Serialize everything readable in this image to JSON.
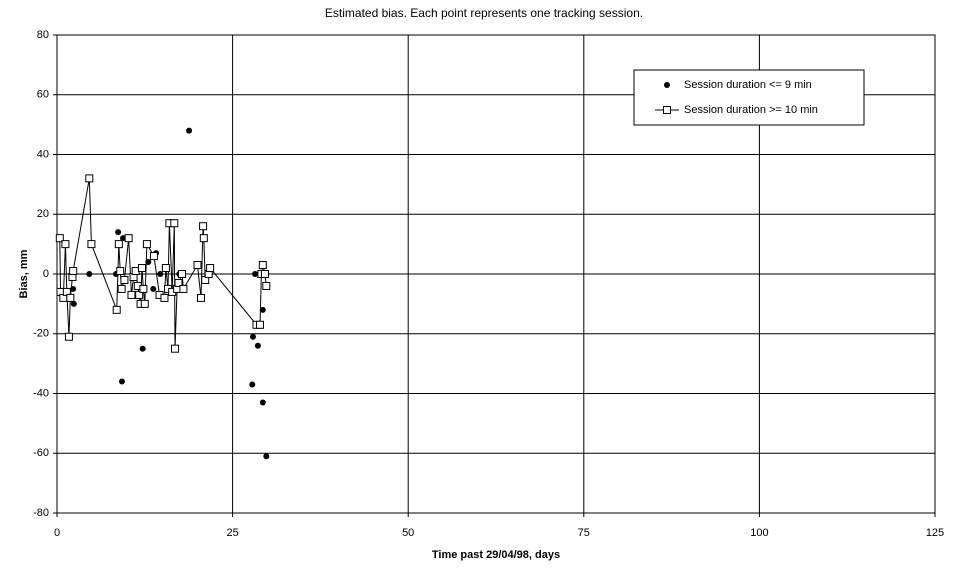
{
  "chart_data": {
    "type": "scatter",
    "title": "Estimated bias. Each point represents one tracking session.",
    "x_label": "Time past 29/04/98, days",
    "y_label": "Bias, mm",
    "xlim": [
      0,
      125
    ],
    "xticks": [
      0,
      25,
      50,
      75,
      100,
      125
    ],
    "ylim": [
      -80,
      80
    ],
    "yticks": [
      -80,
      -60,
      -40,
      -20,
      0,
      20,
      40,
      60,
      80
    ],
    "grid": true,
    "legend": "top-right",
    "series": [
      {
        "name": "Session duration <= 9 min",
        "color": "#000000",
        "mode": "markers",
        "x": [
          2.3,
          2.4,
          4.6,
          8.4,
          8.7,
          9.25,
          9.4,
          12.2,
          13.0,
          13.7,
          14.1,
          14.7,
          17.4,
          18.8,
          27.8,
          27.9,
          28.2,
          28.6,
          29.3,
          29.3,
          29.8,
          29.8
        ],
        "values": [
          -5,
          -10,
          0,
          0,
          14,
          -36,
          12,
          -25,
          4,
          -5,
          7,
          0,
          0,
          48,
          -37,
          -21,
          0,
          -24,
          -43,
          -12,
          0,
          -61
        ]
      },
      {
        "name": "Session duration >= 10 min",
        "color": "#000000",
        "mode": "lines+markers",
        "x": [
          0.4,
          0.5,
          0.9,
          1.2,
          1.4,
          1.7,
          1.9,
          2.2,
          2.3,
          4.6,
          4.9,
          8.5,
          8.8,
          9.0,
          9.2,
          9.6,
          10.2,
          10.6,
          10.9,
          11.2,
          11.5,
          11.7,
          11.9,
          12.1,
          12.3,
          12.5,
          12.8,
          13.8,
          14.6,
          15.3,
          15.5,
          15.8,
          16.0,
          16.4,
          16.7,
          16.8,
          17.1,
          17.3,
          17.8,
          18.0,
          20.0,
          20.5,
          20.8,
          20.9,
          21.1,
          21.6,
          21.8,
          28.4,
          28.9,
          29.1,
          29.3,
          29.6,
          29.8
        ],
        "values": [
          12,
          -6,
          -8,
          10,
          -6,
          -21,
          -8,
          -1,
          1,
          32,
          10,
          -12,
          10,
          1,
          -5,
          -2,
          12,
          -7,
          -1,
          1,
          -4,
          -7,
          -10,
          2,
          -5,
          -10,
          10,
          6,
          -7,
          -8,
          2,
          -5,
          17,
          -6,
          17,
          -25,
          -5,
          -3,
          0,
          -5,
          3,
          -8,
          16,
          12,
          -2,
          0,
          2,
          -17,
          -17,
          0,
          3,
          0,
          -4
        ]
      }
    ]
  }
}
